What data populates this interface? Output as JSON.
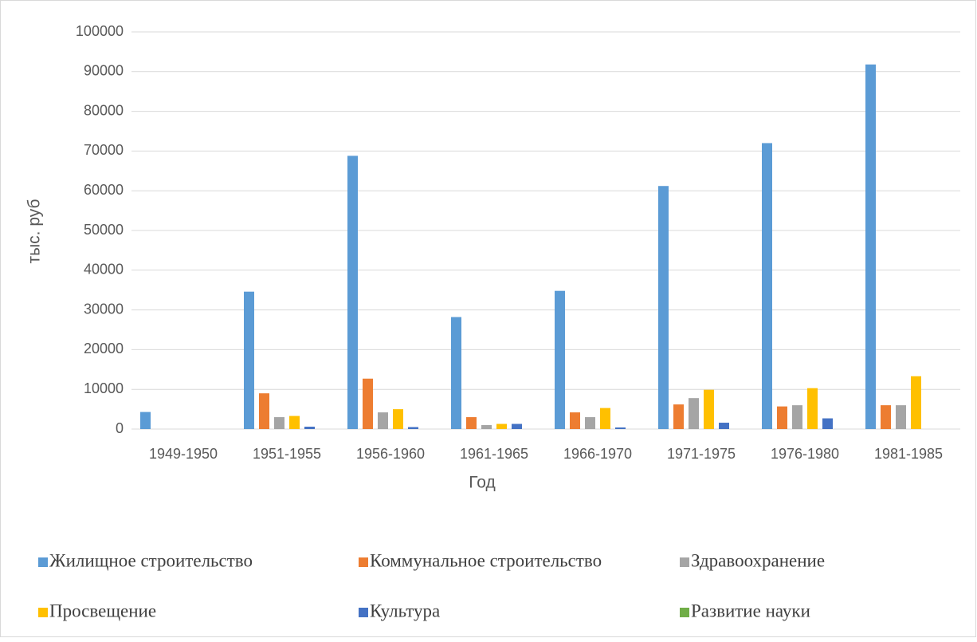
{
  "chart_data": {
    "type": "bar",
    "x_label": "Год",
    "y_label": "тыс. руб",
    "categories": [
      "1949-1950",
      "1951-1955",
      "1956-1960",
      "1961-1965",
      "1966-1970",
      "1971-1975",
      "1976-1980",
      "1981-1985"
    ],
    "series": [
      {
        "name": "Жилищное строительство",
        "color": "#5b9bd5",
        "values": [
          4300,
          34600,
          68800,
          28200,
          34800,
          61200,
          72000,
          91800
        ]
      },
      {
        "name": "Коммунальное строительство",
        "color": "#ed7d31",
        "values": [
          0,
          9000,
          12700,
          3000,
          4200,
          6200,
          5700,
          6000
        ]
      },
      {
        "name": "Здравоохранение",
        "color": "#a5a5a5",
        "values": [
          0,
          3000,
          4200,
          1000,
          3000,
          7800,
          6000,
          6000
        ]
      },
      {
        "name": "Просвещение",
        "color": "#ffc000",
        "values": [
          0,
          3300,
          5000,
          1300,
          5300,
          9900,
          10300,
          13300
        ]
      },
      {
        "name": "Культура",
        "color": "#4472c4",
        "values": [
          0,
          600,
          500,
          1300,
          400,
          1600,
          2700,
          0
        ]
      },
      {
        "name": "Развитие науки",
        "color": "#70ad47",
        "values": [
          0,
          0,
          0,
          0,
          0,
          0,
          0,
          0
        ]
      }
    ],
    "ylim": [
      0,
      100000
    ],
    "yticks": [
      0,
      10000,
      20000,
      30000,
      40000,
      50000,
      60000,
      70000,
      80000,
      90000,
      100000
    ],
    "grid": true,
    "legend": "bottom"
  }
}
